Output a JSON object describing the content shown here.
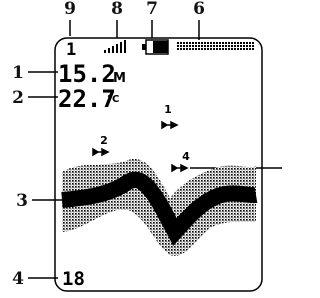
{
  "callouts": {
    "channel": "9",
    "signal": "8",
    "battery": "7",
    "status_bar": "6",
    "depth": "1",
    "temperature": "2",
    "bottom": "3",
    "range": "4"
  },
  "screen": {
    "channel": "1",
    "depth": "15.2",
    "depth_unit": "M",
    "temperature": "22.7",
    "temperature_unit": "°C",
    "fish": [
      {
        "label": "1"
      },
      {
        "label": "2"
      },
      {
        "label": "4"
      }
    ],
    "bottom_depth": "18"
  }
}
